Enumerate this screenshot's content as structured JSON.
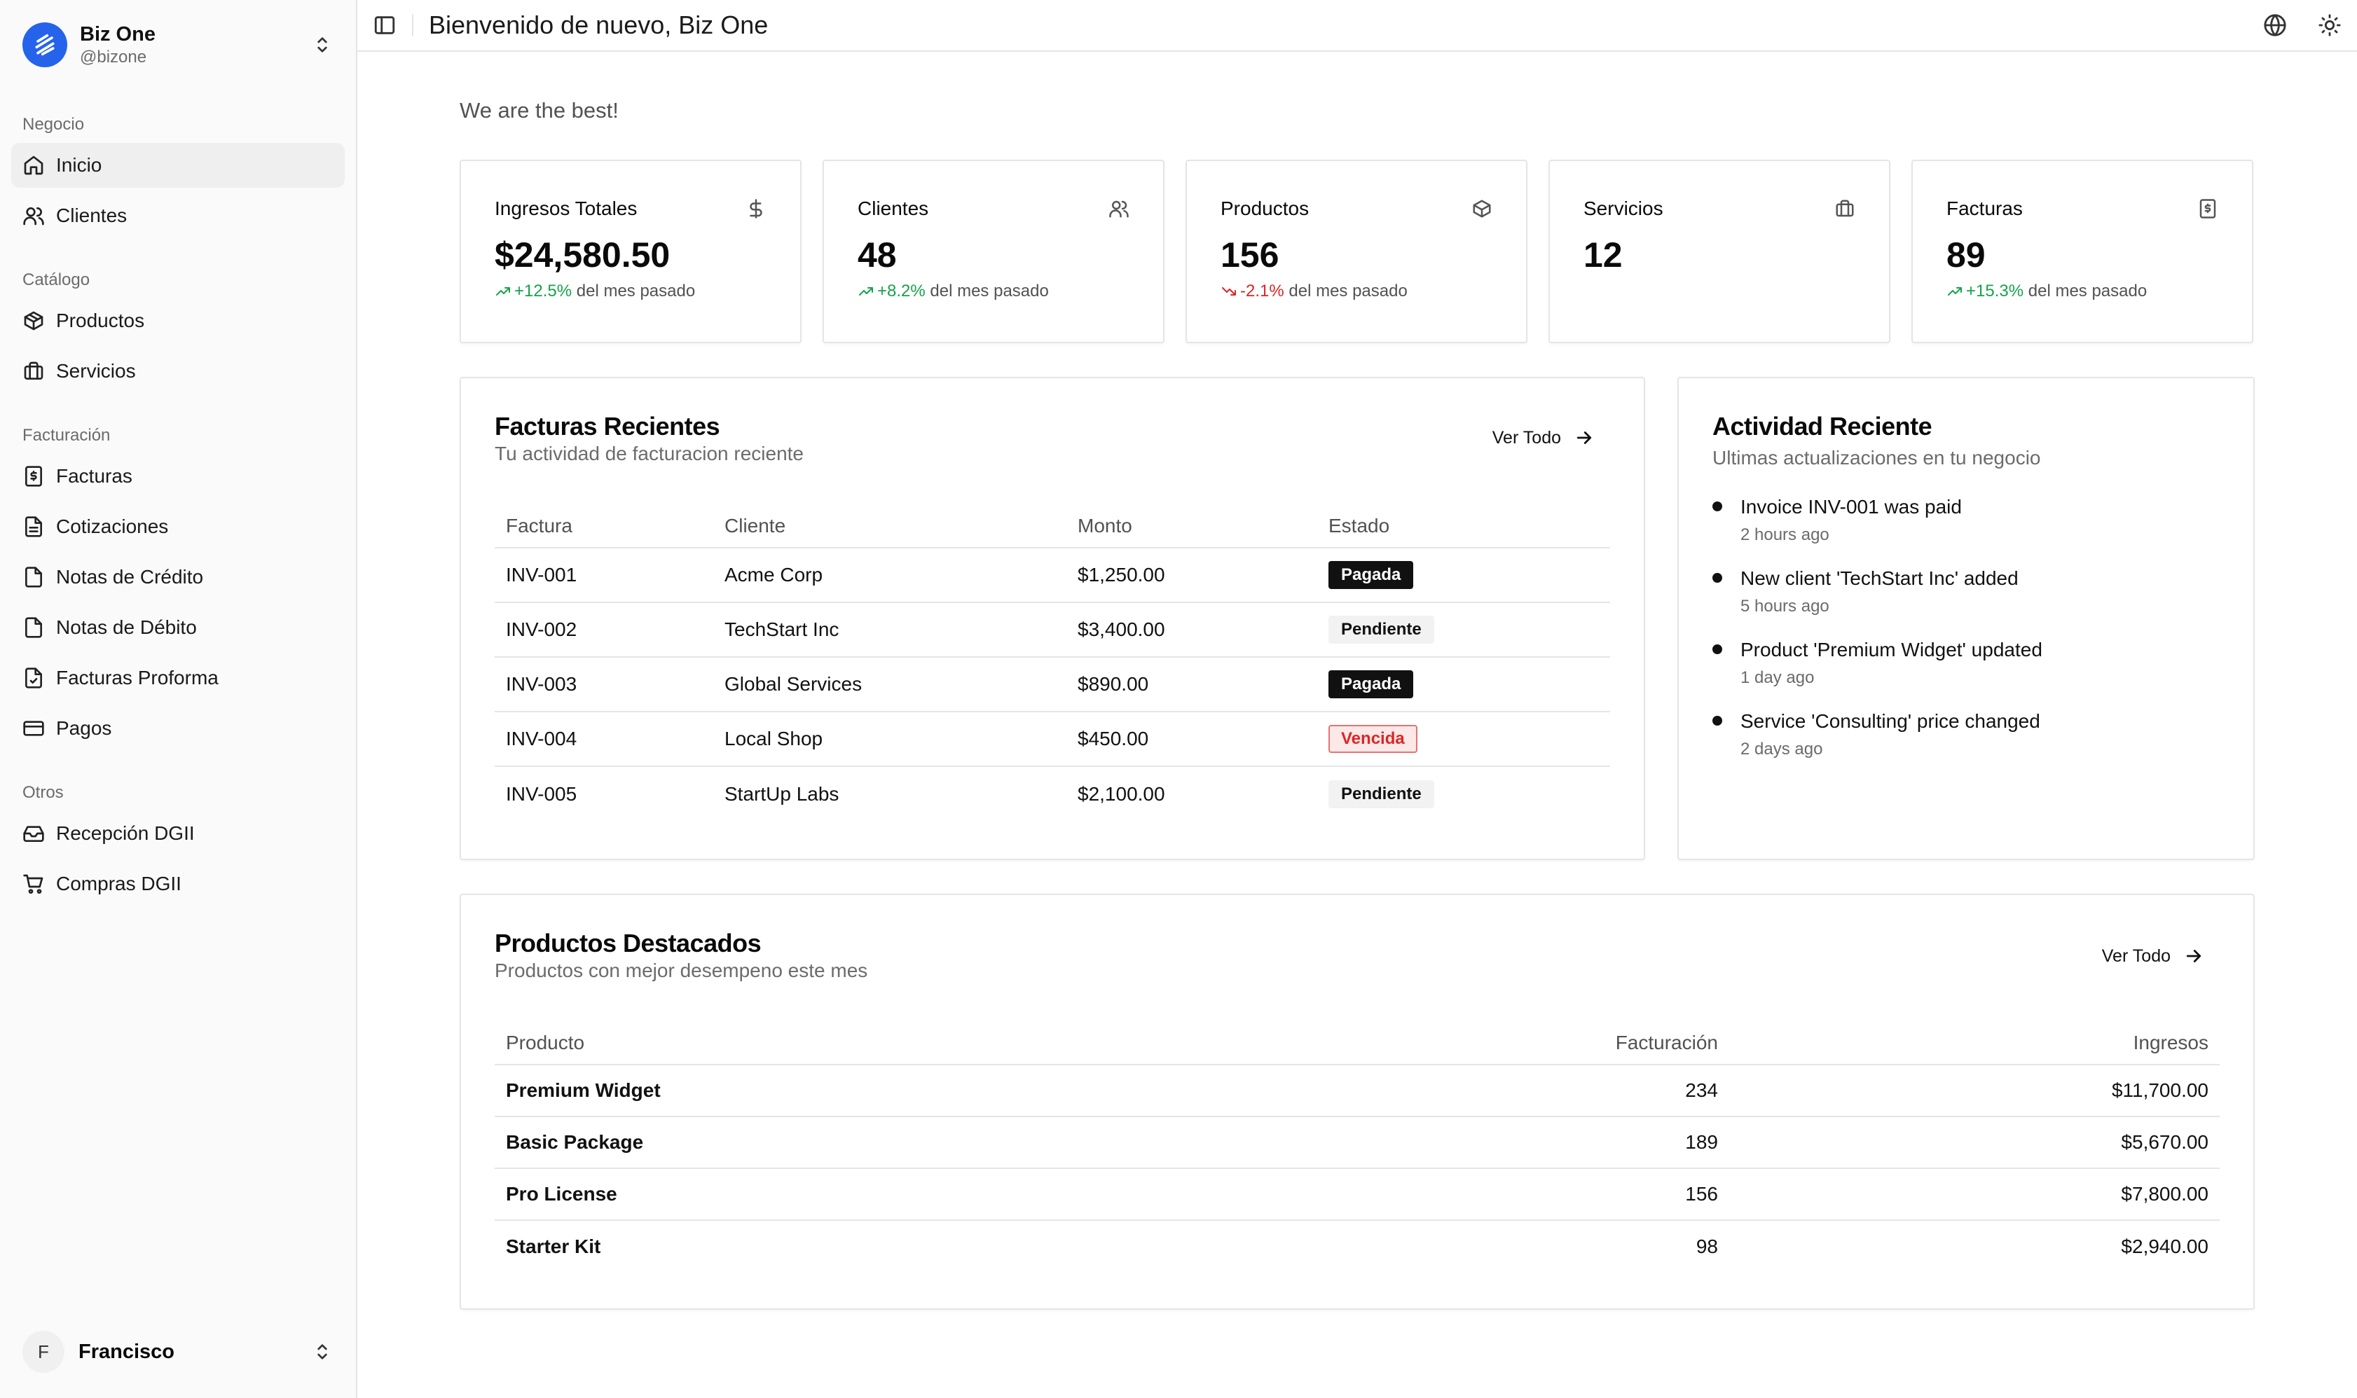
{
  "sidebar": {
    "brand_name": "Biz One",
    "brand_handle": "@bizone",
    "groups": [
      {
        "label": "Negocio",
        "items": [
          {
            "label": "Inicio",
            "icon": "home-icon"
          },
          {
            "label": "Clientes",
            "icon": "users-icon"
          }
        ]
      },
      {
        "label": "Catálogo",
        "items": [
          {
            "label": "Productos",
            "icon": "package-icon"
          },
          {
            "label": "Servicios",
            "icon": "briefcase-icon"
          }
        ]
      },
      {
        "label": "Facturación",
        "items": [
          {
            "label": "Facturas",
            "icon": "receipt-icon"
          },
          {
            "label": "Cotizaciones",
            "icon": "file-icon"
          },
          {
            "label": "Notas de Crédito",
            "icon": "file-icon"
          },
          {
            "label": "Notas de Débito",
            "icon": "file-icon"
          },
          {
            "label": "Facturas Proforma",
            "icon": "file-check-icon"
          },
          {
            "label": "Pagos",
            "icon": "credit-card-icon"
          }
        ]
      },
      {
        "label": "Otros",
        "items": [
          {
            "label": "Recepción DGII",
            "icon": "inbox-icon"
          },
          {
            "label": "Compras DGII",
            "icon": "cart-icon"
          }
        ]
      }
    ],
    "user_initial": "F",
    "user_name": "Francisco"
  },
  "header": {
    "title": "Bienvenido de nuevo, Biz One"
  },
  "tagline": "We are the best!",
  "stats": [
    {
      "title": "Ingresos Totales",
      "value": "$24,580.50",
      "change": "+12.5%",
      "trend": "up",
      "suffix": "del mes pasado",
      "icon": "dollar-icon"
    },
    {
      "title": "Clientes",
      "value": "48",
      "change": "+8.2%",
      "trend": "up",
      "suffix": "del mes pasado",
      "icon": "users-icon"
    },
    {
      "title": "Productos",
      "value": "156",
      "change": "-2.1%",
      "trend": "down",
      "suffix": "del mes pasado",
      "icon": "package-icon"
    },
    {
      "title": "Servicios",
      "value": "12",
      "icon": "briefcase-icon"
    },
    {
      "title": "Facturas",
      "value": "89",
      "change": "+15.3%",
      "trend": "up",
      "suffix": "del mes pasado",
      "icon": "receipt-icon"
    }
  ],
  "invoices": {
    "title": "Facturas Recientes",
    "subtitle": "Tu actividad de facturacion reciente",
    "view_all": "Ver Todo",
    "headers": [
      "Factura",
      "Cliente",
      "Monto",
      "Estado"
    ],
    "rows": [
      {
        "id": "INV-001",
        "client": "Acme Corp",
        "amount": "$1,250.00",
        "status": "Pagada",
        "kind": "paid"
      },
      {
        "id": "INV-002",
        "client": "TechStart Inc",
        "amount": "$3,400.00",
        "status": "Pendiente",
        "kind": "pending"
      },
      {
        "id": "INV-003",
        "client": "Global Services",
        "amount": "$890.00",
        "status": "Pagada",
        "kind": "paid"
      },
      {
        "id": "INV-004",
        "client": "Local Shop",
        "amount": "$450.00",
        "status": "Vencida",
        "kind": "overdue"
      },
      {
        "id": "INV-005",
        "client": "StartUp Labs",
        "amount": "$2,100.00",
        "status": "Pendiente",
        "kind": "pending"
      }
    ]
  },
  "activity": {
    "title": "Actividad Reciente",
    "subtitle": "Ultimas actualizaciones en tu negocio",
    "items": [
      {
        "text": "Invoice INV-001 was paid",
        "time": "2 hours ago"
      },
      {
        "text": "New client 'TechStart Inc' added",
        "time": "5 hours ago"
      },
      {
        "text": "Product 'Premium Widget' updated",
        "time": "1 day ago"
      },
      {
        "text": "Service 'Consulting' price changed",
        "time": "2 days ago"
      }
    ]
  },
  "products": {
    "title": "Productos Destacados",
    "subtitle": "Productos con mejor desempeno este mes",
    "view_all": "Ver Todo",
    "headers": [
      "Producto",
      "Facturación",
      "Ingresos"
    ],
    "rows": [
      {
        "name": "Premium Widget",
        "billing": "234",
        "revenue": "$11,700.00"
      },
      {
        "name": "Basic Package",
        "billing": "189",
        "revenue": "$5,670.00"
      },
      {
        "name": "Pro License",
        "billing": "156",
        "revenue": "$7,800.00"
      },
      {
        "name": "Starter Kit",
        "billing": "98",
        "revenue": "$2,940.00"
      }
    ]
  },
  "colors": {
    "brand": "#2563eb",
    "up": "#16a34a",
    "down": "#dc2626"
  }
}
